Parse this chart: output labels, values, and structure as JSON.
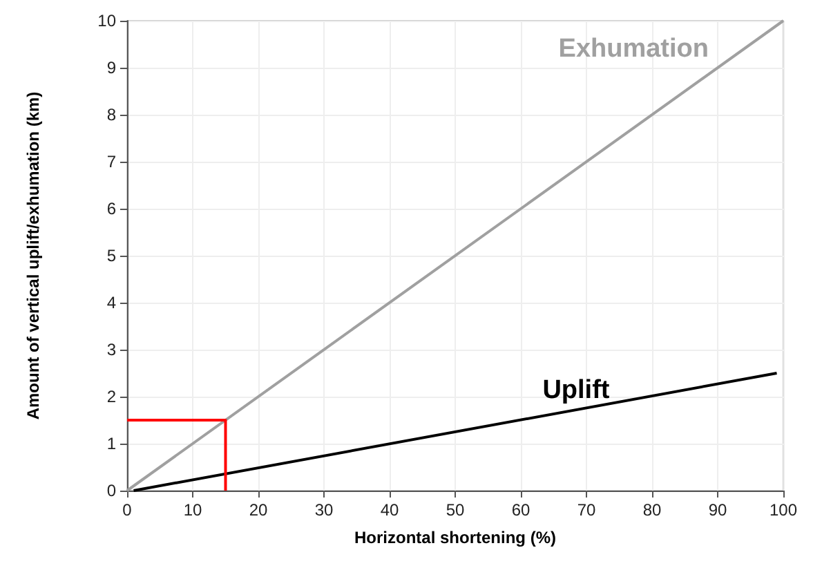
{
  "chart_data": {
    "type": "line",
    "xlabel": "Horizontal shortening (%)",
    "ylabel": "Amount of vertical uplift/exhumation (km)",
    "xlim": [
      0,
      100
    ],
    "xticks": [
      0,
      10,
      20,
      30,
      40,
      50,
      60,
      70,
      80,
      90,
      100
    ],
    "ylim": [
      0,
      10
    ],
    "yticks": [
      0,
      1,
      2,
      3,
      4,
      5,
      6,
      7,
      8,
      9,
      10
    ],
    "grid": true,
    "legend": false,
    "marker": "none",
    "line_style": "solid",
    "series": [
      {
        "name": "Exhumation",
        "color": "#a0a0a0",
        "x": [
          0,
          100
        ],
        "values": [
          0,
          10
        ]
      },
      {
        "name": "Uplift",
        "color": "#000000",
        "x": [
          1,
          99
        ],
        "values": [
          0,
          2.5
        ]
      },
      {
        "color": "#ff0000",
        "x": [
          0,
          15,
          15
        ],
        "values": [
          1.5,
          1.5,
          0
        ]
      }
    ]
  }
}
